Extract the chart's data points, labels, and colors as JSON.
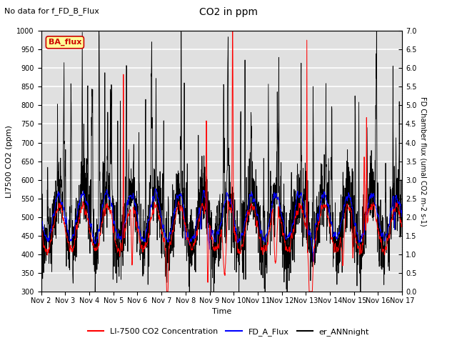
{
  "title": "CO2 in ppm",
  "suptitle": "No data for f_FD_B_Flux",
  "ylabel_left": "LI7500 CO2 (ppm)",
  "ylabel_right": "FD Chamber flux (umal CO2 m-2 s-1)",
  "xlabel": "Time",
  "ylim_left": [
    300,
    1000
  ],
  "ylim_right": [
    0.0,
    7.0
  ],
  "yticks_left": [
    300,
    350,
    400,
    450,
    500,
    550,
    600,
    650,
    700,
    750,
    800,
    850,
    900,
    950,
    1000
  ],
  "yticks_right": [
    0.0,
    0.5,
    1.0,
    1.5,
    2.0,
    2.5,
    3.0,
    3.5,
    4.0,
    4.5,
    5.0,
    5.5,
    6.0,
    6.5,
    7.0
  ],
  "xtick_labels": [
    "Nov 2",
    "Nov 3",
    "Nov 4",
    "Nov 5",
    "Nov 6",
    "Nov 7",
    "Nov 8",
    "Nov 9",
    "Nov 10",
    "Nov 11",
    "Nov 12",
    "Nov 13",
    "Nov 14",
    "Nov 15",
    "Nov 16",
    "Nov 17"
  ],
  "ba_flux_label": "BA_flux",
  "ba_flux_color": "#cc0000",
  "ba_flux_bg": "#ffff99",
  "background_color": "#e0e0e0",
  "grid_color": "white",
  "seed": 42,
  "n_days": 15,
  "points_per_day": 144
}
